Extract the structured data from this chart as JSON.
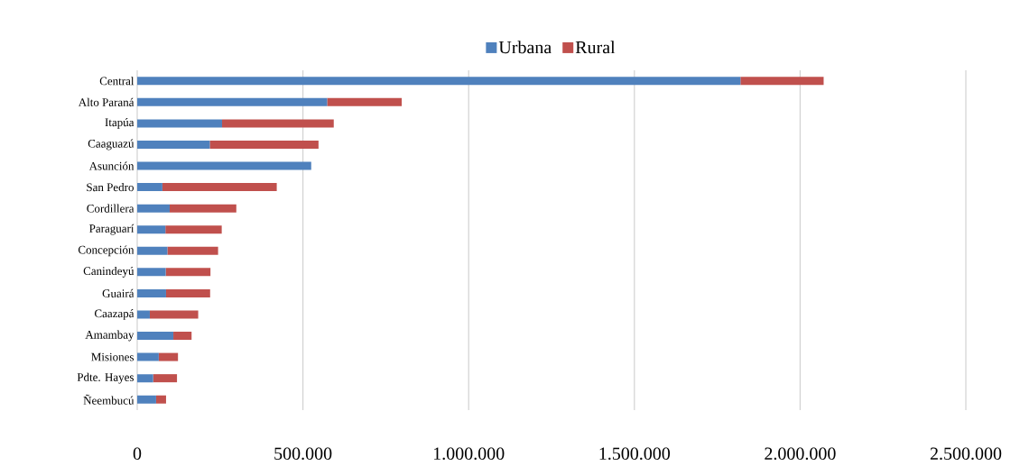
{
  "chart_data": {
    "type": "bar",
    "orientation": "horizontal",
    "stacked": true,
    "categories": [
      "Central",
      "Alto Paraná",
      "Itapúa",
      "Caaguazú",
      "Asunción",
      "San Pedro",
      "Cordillera",
      "Paraguarí",
      "Concepción",
      "Canindeyú",
      "Guairá",
      "Caazapá",
      "Amambay",
      "Misiones",
      "Pdte. Hayes",
      "Ñeembucú"
    ],
    "series": [
      {
        "name": "Urbana",
        "color": "#4f81bd",
        "values": [
          1820000,
          573000,
          256000,
          219000,
          525000,
          76000,
          98000,
          85000,
          91000,
          86000,
          87000,
          38000,
          109000,
          65000,
          48000,
          57000
        ]
      },
      {
        "name": "Rural",
        "color": "#c0504d",
        "values": [
          251000,
          225000,
          337000,
          328000,
          0,
          345000,
          201000,
          170000,
          153000,
          135000,
          133000,
          146000,
          55000,
          58000,
          72000,
          30000
        ]
      }
    ],
    "xlim": [
      0,
      2500000
    ],
    "xticks": [
      0,
      {
        "value": 500000,
        "label": "500.000"
      },
      {
        "value": 1000000,
        "label": "1.000.000"
      },
      {
        "value": 1500000,
        "label": "1.500.000"
      },
      {
        "value": 2000000,
        "label": "2.000.000"
      },
      {
        "value": 2500000,
        "label": "2.500.000"
      }
    ],
    "grid": "x",
    "legend": "top"
  }
}
